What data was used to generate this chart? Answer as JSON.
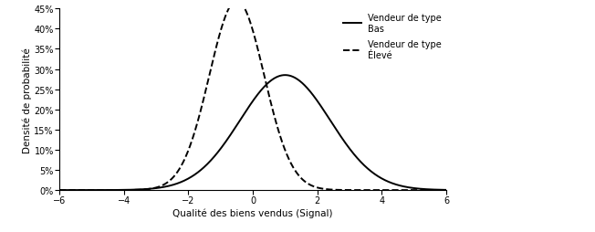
{
  "title": "",
  "xlabel": "Qualité des biens vendus (Signal)",
  "ylabel": "Densité de probabilité",
  "xlim": [
    -6,
    6
  ],
  "ylim": [
    0,
    0.45
  ],
  "xticks": [
    -6,
    -4,
    -2,
    0,
    2,
    4,
    6
  ],
  "yticks": [
    0.0,
    0.05,
    0.1,
    0.15,
    0.2,
    0.25,
    0.3,
    0.35,
    0.4,
    0.45
  ],
  "curve_bas": {
    "mean": 1.0,
    "std": 1.4,
    "color": "#000000",
    "linestyle": "solid",
    "linewidth": 1.4,
    "label": "Vendeur de type\nBas"
  },
  "curve_eleve": {
    "mean": -0.5,
    "std": 0.85,
    "color": "#000000",
    "linestyle": "dashed",
    "linewidth": 1.4,
    "label": "Vendeur de type\nÉlevé"
  },
  "legend_fontsize": 7,
  "axis_fontsize": 7.5,
  "tick_fontsize": 7,
  "ylabel_fontsize": 7.5
}
